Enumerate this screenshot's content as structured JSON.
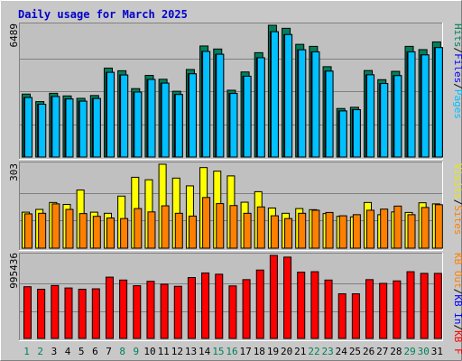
{
  "chart_data": [
    {
      "type": "bar",
      "title": "Daily usage for March 2025",
      "ymax_label": "6489",
      "legend_parts": [
        "Pages",
        "Files",
        "Hits"
      ],
      "legend_seps": [
        "/",
        "/"
      ],
      "x": [
        "1",
        "2",
        "3",
        "4",
        "5",
        "6",
        "7",
        "8",
        "9",
        "10",
        "11",
        "12",
        "13",
        "14",
        "15",
        "16",
        "17",
        "18",
        "19",
        "20",
        "21",
        "22",
        "23",
        "24",
        "25",
        "26",
        "27",
        "28",
        "29",
        "30",
        "31"
      ],
      "weekend_days": [
        1,
        2,
        8,
        9,
        15,
        16,
        22,
        23,
        29,
        30
      ],
      "ylim": [
        0,
        6489
      ],
      "series": [
        {
          "name": "Hits",
          "values": [
            3100,
            2730,
            3140,
            3010,
            2890,
            3030,
            4380,
            4250,
            3370,
            4020,
            3830,
            3240,
            4310,
            5470,
            5320,
            3290,
            4190,
            5140,
            6489,
            6340,
            5550,
            5450,
            4450,
            2390,
            2450,
            4260,
            3810,
            4220,
            5450,
            5290,
            5670
          ]
        },
        {
          "name": "Files",
          "values": [
            2930,
            2600,
            2980,
            2860,
            2750,
            2880,
            4170,
            4040,
            3200,
            3820,
            3640,
            3080,
            4100,
            5200,
            5060,
            3130,
            3980,
            4890,
            6170,
            6030,
            5280,
            5180,
            4230,
            2270,
            2330,
            4050,
            3620,
            4010,
            5180,
            5030,
            5390
          ]
        }
      ]
    },
    {
      "type": "bar",
      "ymax_label": "303",
      "legend_parts": [
        "Visits",
        "Sites"
      ],
      "legend_seps": [
        "/"
      ],
      "x": [
        "1",
        "2",
        "3",
        "4",
        "5",
        "6",
        "7",
        "8",
        "9",
        "10",
        "11",
        "12",
        "13",
        "14",
        "15",
        "16",
        "17",
        "18",
        "19",
        "20",
        "21",
        "22",
        "23",
        "24",
        "25",
        "26",
        "27",
        "28",
        "29",
        "30",
        "31"
      ],
      "ylim": [
        0,
        303
      ],
      "series": [
        {
          "name": "Visits",
          "values": [
            130,
            140,
            165,
            158,
            210,
            130,
            126,
            188,
            256,
            247,
            303,
            253,
            225,
            291,
            278,
            261,
            166,
            204,
            145,
            126,
            143,
            139,
            125,
            115,
            113,
            165,
            121,
            131,
            129,
            164,
            160
          ]
        },
        {
          "name": "Sites",
          "values": [
            124,
            126,
            160,
            140,
            125,
            115,
            109,
            107,
            143,
            131,
            153,
            126,
            116,
            183,
            161,
            154,
            126,
            149,
            117,
            107,
            126,
            137,
            129,
            117,
            121,
            137,
            141,
            152,
            121,
            147,
            157
          ]
        }
      ]
    },
    {
      "type": "bar",
      "ymax_label": "995436",
      "legend_parts": [
        "KB F",
        "KB In",
        "KB Out"
      ],
      "legend_seps": [
        "/",
        "/"
      ],
      "x": [
        "1",
        "2",
        "3",
        "4",
        "5",
        "6",
        "7",
        "8",
        "9",
        "10",
        "11",
        "12",
        "13",
        "14",
        "15",
        "16",
        "17",
        "18",
        "19",
        "20",
        "21",
        "22",
        "23",
        "24",
        "25",
        "26",
        "27",
        "28",
        "29",
        "30",
        "31"
      ],
      "ylim": [
        0,
        995436
      ],
      "series": [
        {
          "name": "KB F",
          "values": [
            620000,
            590000,
            635000,
            605000,
            590000,
            595000,
            735000,
            700000,
            632000,
            685000,
            650000,
            625000,
            730000,
            785000,
            770000,
            630000,
            705000,
            820000,
            995436,
            975000,
            795000,
            800000,
            700000,
            535000,
            535000,
            705000,
            660000,
            690000,
            800000,
            780000,
            780000
          ]
        }
      ]
    }
  ]
}
